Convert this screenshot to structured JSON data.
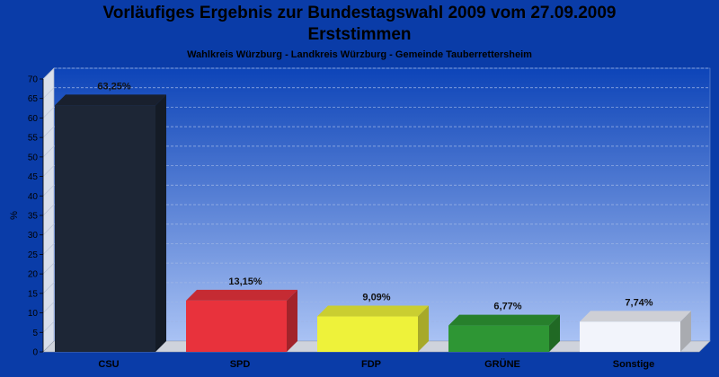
{
  "header": {
    "title_line1": "Vorläufiges Ergebnis zur Bundestagswahl 2009 vom 27.09.2009",
    "title_line2": "Erststimmen",
    "subtitle": "Wahlkreis Würzburg - Landkreis Würzburg - Gemeinde Tauberrettersheim"
  },
  "chart_data": {
    "type": "bar",
    "categories": [
      "CSU",
      "SPD",
      "FDP",
      "GRÜNE",
      "Sonstige"
    ],
    "values": [
      63.25,
      13.15,
      9.09,
      6.77,
      7.74
    ],
    "value_labels": [
      "63,25%",
      "13,15%",
      "9,09%",
      "6,77%",
      "7,74%"
    ],
    "colors": [
      "#1d2636",
      "#e8323c",
      "#eef23a",
      "#2e9634",
      "#f2f4fb"
    ],
    "ylabel": "%",
    "ylim": [
      0,
      70
    ],
    "yticks": [
      0,
      5,
      10,
      15,
      20,
      25,
      30,
      35,
      40,
      45,
      50,
      55,
      60,
      65,
      70
    ],
    "grid": true
  }
}
